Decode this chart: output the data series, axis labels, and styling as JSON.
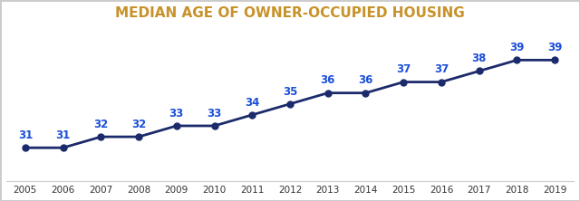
{
  "title": "MEDIAN AGE OF OWNER-OCCUPIED HOUSING",
  "title_color": "#C8922A",
  "title_fontsize": 11,
  "years": [
    2005,
    2006,
    2007,
    2008,
    2009,
    2010,
    2011,
    2012,
    2013,
    2014,
    2015,
    2016,
    2017,
    2018,
    2019
  ],
  "values": [
    31,
    31,
    32,
    32,
    33,
    33,
    34,
    35,
    36,
    36,
    37,
    37,
    38,
    39,
    39
  ],
  "line_color": "#1B2A6B",
  "marker": "o",
  "marker_size": 5,
  "label_color": "#1B4FD8",
  "label_fontsize": 8.5,
  "label_fontweight": "bold",
  "ylim": [
    28,
    42
  ],
  "background_color": "#FFFFFF",
  "border_color": "#CCCCCC"
}
